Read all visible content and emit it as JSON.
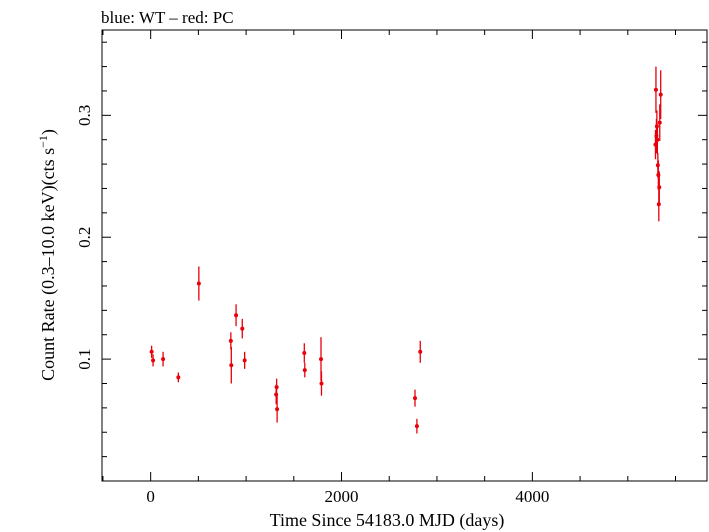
{
  "chart_data": {
    "type": "scatter",
    "title": "blue: WT – red: PC",
    "xlabel": "Time Since 54183.0 MJD (days)",
    "ylabel": "Count Rate (0.3–10.0 keV)(cts s",
    "ylabel_sup": "−1",
    "ylabel_end": ")",
    "xlim": [
      -510,
      5830
    ],
    "ylim": [
      0.0,
      0.37
    ],
    "x_ticks": [
      0,
      2000,
      4000
    ],
    "x_tick_labels": [
      "0",
      "2000",
      "4000"
    ],
    "y_ticks": [
      0.1,
      0.2,
      0.3
    ],
    "y_tick_labels": [
      "0.1",
      "0.2",
      "0.3"
    ],
    "x_minor_step": 500,
    "y_minor_step": 0.02,
    "grid": false,
    "series": [
      {
        "color": "#e8000b",
        "points": [
          {
            "x": 10,
            "y": 0.106,
            "err": 0.005
          },
          {
            "x": 25,
            "y": 0.099,
            "err": 0.005
          },
          {
            "x": 130,
            "y": 0.1,
            "err": 0.006
          },
          {
            "x": 290,
            "y": 0.085,
            "err": 0.004
          },
          {
            "x": 505,
            "y": 0.162,
            "err": 0.014
          },
          {
            "x": 840,
            "y": 0.115,
            "err": 0.007
          },
          {
            "x": 845,
            "y": 0.095,
            "err": 0.015
          },
          {
            "x": 895,
            "y": 0.136,
            "err": 0.009
          },
          {
            "x": 960,
            "y": 0.125,
            "err": 0.008
          },
          {
            "x": 985,
            "y": 0.099,
            "err": 0.007
          },
          {
            "x": 1315,
            "y": 0.071,
            "err": 0.008
          },
          {
            "x": 1320,
            "y": 0.077,
            "err": 0.007
          },
          {
            "x": 1325,
            "y": 0.059,
            "err": 0.011
          },
          {
            "x": 1610,
            "y": 0.105,
            "err": 0.008
          },
          {
            "x": 1615,
            "y": 0.091,
            "err": 0.006
          },
          {
            "x": 1785,
            "y": 0.1,
            "err": 0.018
          },
          {
            "x": 1790,
            "y": 0.08,
            "err": 0.01
          },
          {
            "x": 2770,
            "y": 0.068,
            "err": 0.007
          },
          {
            "x": 2790,
            "y": 0.045,
            "err": 0.006
          },
          {
            "x": 2825,
            "y": 0.106,
            "err": 0.009
          },
          {
            "x": 5290,
            "y": 0.276,
            "err": 0.012
          },
          {
            "x": 5295,
            "y": 0.321,
            "err": 0.019
          },
          {
            "x": 5300,
            "y": 0.283,
            "err": 0.014
          },
          {
            "x": 5305,
            "y": 0.291,
            "err": 0.013
          },
          {
            "x": 5310,
            "y": 0.28,
            "err": 0.012
          },
          {
            "x": 5315,
            "y": 0.259,
            "err": 0.01
          },
          {
            "x": 5320,
            "y": 0.251,
            "err": 0.012
          },
          {
            "x": 5325,
            "y": 0.227,
            "err": 0.014
          },
          {
            "x": 5330,
            "y": 0.241,
            "err": 0.013
          },
          {
            "x": 5335,
            "y": 0.294,
            "err": 0.015
          },
          {
            "x": 5345,
            "y": 0.317,
            "err": 0.02
          }
        ]
      }
    ]
  }
}
